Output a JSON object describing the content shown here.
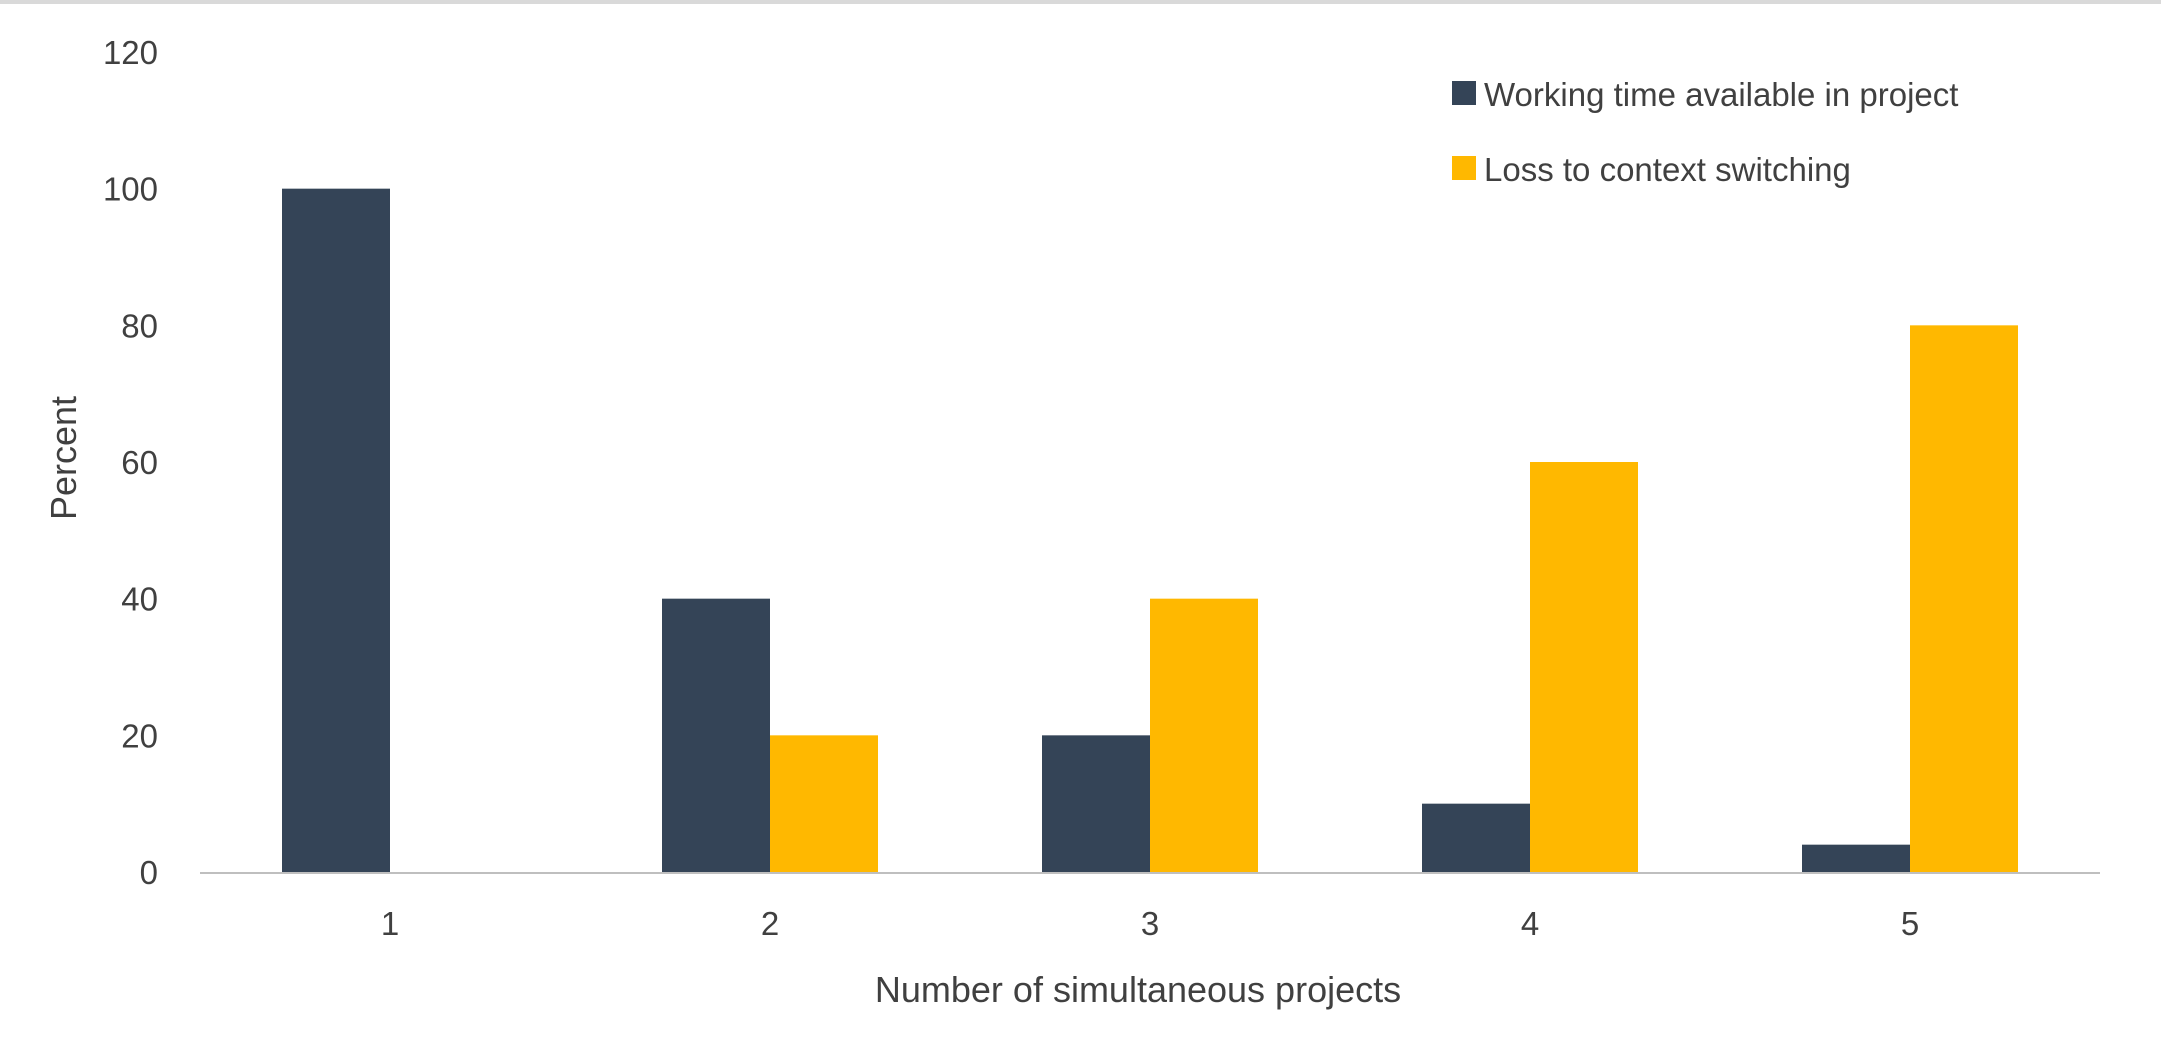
{
  "chart_data": {
    "type": "bar",
    "categories": [
      "1",
      "2",
      "3",
      "4",
      "5"
    ],
    "series": [
      {
        "name": "Working time available in project",
        "color": "#344457",
        "values": [
          100,
          40,
          20,
          10,
          4
        ]
      },
      {
        "name": "Loss to context switching",
        "color": "#ffb800",
        "values": [
          0,
          20,
          40,
          60,
          80
        ]
      }
    ],
    "title": "",
    "xlabel": "Number of simultaneous projects",
    "ylabel": "Percent",
    "ylim": [
      0,
      120
    ],
    "yticks": [
      0,
      20,
      40,
      60,
      80,
      100,
      120
    ],
    "grid": false,
    "legend_position": "top-right"
  }
}
